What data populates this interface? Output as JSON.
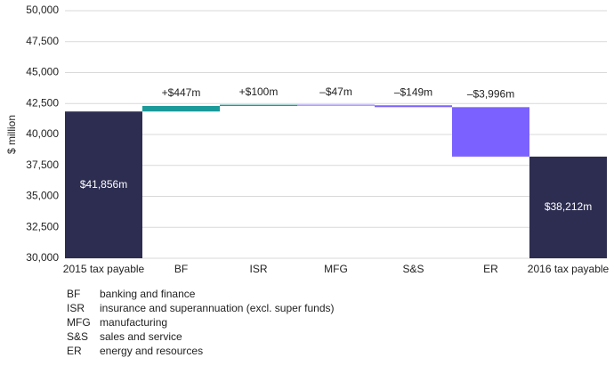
{
  "chart_data": {
    "type": "waterfall",
    "y_label": "$ million",
    "categories": [
      "2015 tax payable",
      "BF",
      "ISR",
      "MFG",
      "S&S",
      "ER",
      "2016 tax payable"
    ],
    "values": [
      41856,
      447,
      100,
      -47,
      -149,
      -3996,
      38212
    ],
    "value_labels": [
      "$41,856m",
      "+$447m",
      "+$100m",
      "–$47m",
      "–$149m",
      "–$3,996m",
      "$38,212m"
    ],
    "kinds": [
      "total",
      "change",
      "change",
      "change",
      "change",
      "change",
      "total"
    ],
    "colors": {
      "total": "#2c2d50",
      "increase": "#1b9a9a",
      "decrease": "#7b61ff"
    },
    "ylim": [
      30000,
      50000
    ],
    "yticks": [
      {
        "value": 30000,
        "label": "30,000"
      },
      {
        "value": 32500,
        "label": "32,500"
      },
      {
        "value": 35000,
        "label": "35,000"
      },
      {
        "value": 37500,
        "label": "37,500"
      },
      {
        "value": 40000,
        "label": "40,000"
      },
      {
        "value": 42500,
        "label": "42,500"
      },
      {
        "value": 45000,
        "label": "45,000"
      },
      {
        "value": 47500,
        "label": "47,500"
      },
      {
        "value": 50000,
        "label": "50,000"
      }
    ],
    "grid": true,
    "notes": [
      {
        "abbr": "BF",
        "text": "banking and finance"
      },
      {
        "abbr": "ISR",
        "text": "insurance and superannuation (excl. super funds)"
      },
      {
        "abbr": "MFG",
        "text": "manufacturing"
      },
      {
        "abbr": "S&S",
        "text": "sales and service"
      },
      {
        "abbr": "ER",
        "text": "energy and resources"
      }
    ]
  }
}
